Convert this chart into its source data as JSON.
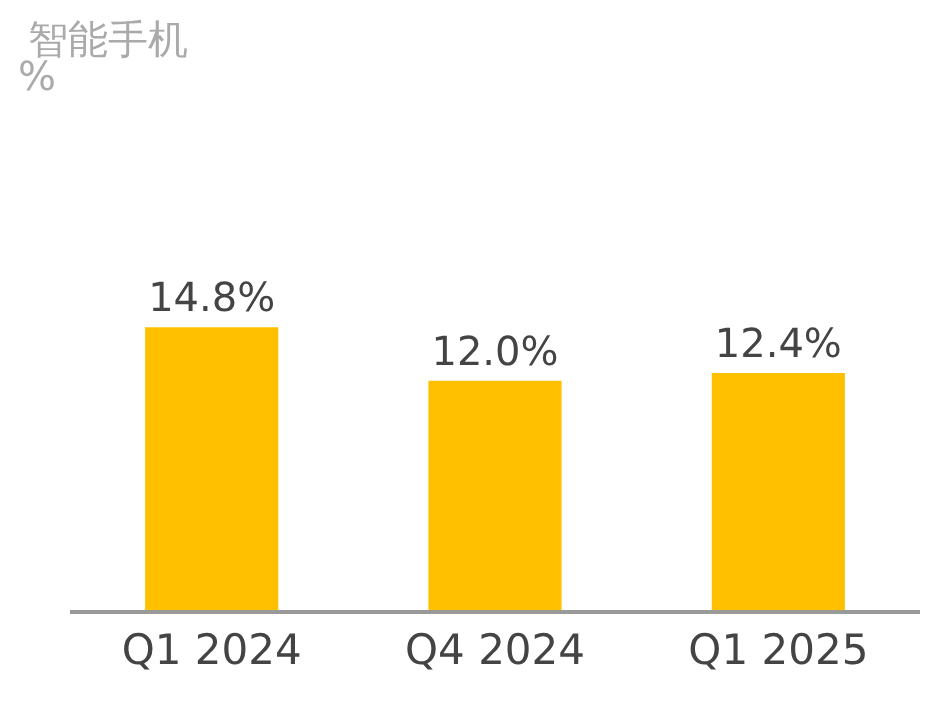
{
  "chart_data": {
    "type": "bar",
    "title": "智能手机",
    "annotations": [
      "%"
    ],
    "categories": [
      "Q1 2024",
      "Q4 2024",
      "Q1 2025"
    ],
    "values": [
      14.8,
      12.0,
      12.4
    ],
    "value_labels": [
      "14.8%",
      "12.0%",
      "12.4%"
    ],
    "color": "#ffc000",
    "grid": false,
    "legend": false
  }
}
